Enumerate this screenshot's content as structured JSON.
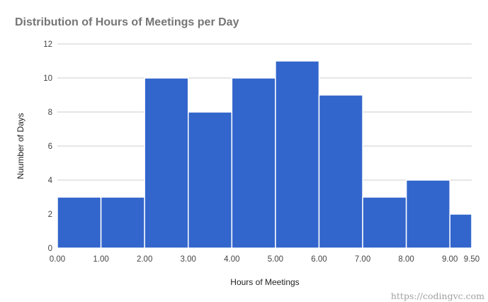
{
  "chart_data": {
    "type": "bar",
    "title": "Distribution of Hours of Meetings per Day",
    "xlabel": "Hours of Meetings",
    "ylabel": "Nuumber of Days",
    "bins": [
      {
        "start": 0,
        "end": 1,
        "value": 3
      },
      {
        "start": 1,
        "end": 2,
        "value": 3
      },
      {
        "start": 2,
        "end": 3,
        "value": 10
      },
      {
        "start": 3,
        "end": 4,
        "value": 8
      },
      {
        "start": 4,
        "end": 5,
        "value": 10
      },
      {
        "start": 5,
        "end": 6,
        "value": 11
      },
      {
        "start": 6,
        "end": 7,
        "value": 9
      },
      {
        "start": 7,
        "end": 8,
        "value": 3
      },
      {
        "start": 8,
        "end": 9,
        "value": 4
      },
      {
        "start": 9,
        "end": 9.5,
        "value": 2
      }
    ],
    "xlim": [
      0,
      9.5
    ],
    "ylim": [
      0,
      12
    ],
    "x_ticks": [
      "0.00",
      "1.00",
      "2.00",
      "3.00",
      "4.00",
      "5.00",
      "6.00",
      "7.00",
      "8.00",
      "9.00",
      "9.50"
    ],
    "x_tick_values": [
      0,
      1,
      2,
      3,
      4,
      5,
      6,
      7,
      8,
      9,
      9.5
    ],
    "y_ticks": [
      "0",
      "2",
      "4",
      "6",
      "8",
      "10",
      "12"
    ],
    "y_tick_values": [
      0,
      2,
      4,
      6,
      8,
      10,
      12
    ],
    "grid": true,
    "legend": "none",
    "bar_color": "#3366cc"
  },
  "watermark": "https://codingvc.com"
}
